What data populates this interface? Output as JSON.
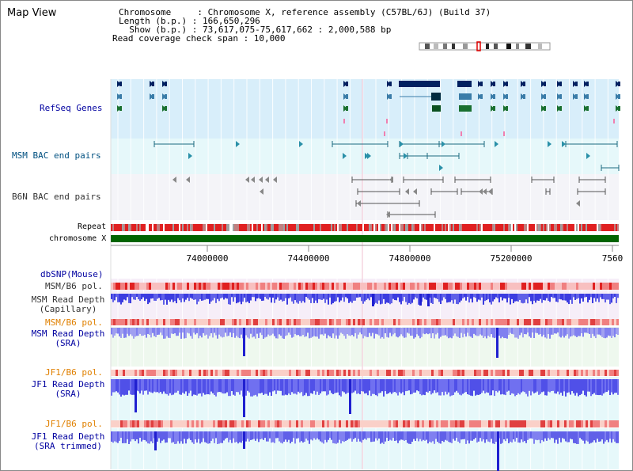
{
  "page": {
    "title": "Map View"
  },
  "info": {
    "chromosome": "Chromosome     : Chromosome X, reference assembly (C57BL/6J) (Build 37)",
    "length": "Length (b.p.) : 166,650,296",
    "show": "  Show (b.p.) : 73,617,075-75,617,662 : 2,000,588 bp",
    "coverage": "Read coverage check span : 10,000"
  },
  "tracks": {
    "refseq": "RefSeq Genes",
    "msm_bac": "MSM BAC end pairs",
    "b6n_bac": "B6N BAC end pairs",
    "repeat": "Repeat",
    "chromosome": "chromosome X",
    "dbsnp": "dbSNP(Mouse)",
    "msm_b6_pol_1": "MSM/B6 pol.",
    "msm_read_depth_cap": "MSM Read Depth\n(Capillary)",
    "msm_b6_pol_2": "MSM/B6 pol.",
    "msm_read_depth_sra": "MSM Read Depth\n(SRA)",
    "jf1_b6_pol_1": "JF1/B6 pol.",
    "jf1_read_depth_sra": "JF1 Read Depth\n(SRA)",
    "jf1_b6_pol_2": "JF1/B6 pol.",
    "jf1_read_depth_trim": "JF1 Read Depth\n(SRA trimmed)"
  },
  "axis": {
    "ticks": [
      "74000000",
      "74400000",
      "74800000",
      "75200000",
      "7560"
    ]
  },
  "colors": {
    "refseq_bg": "#d8eefa",
    "msm_bac_bg": "#e6f8fa",
    "b6n_bac_bg": "#f4f4f8",
    "chromosome_bar": "#006400",
    "depth_blue": "#3030e0",
    "pol_red": "#e03030",
    "label_blue": "#0000a0",
    "label_orange": "#e08000"
  }
}
